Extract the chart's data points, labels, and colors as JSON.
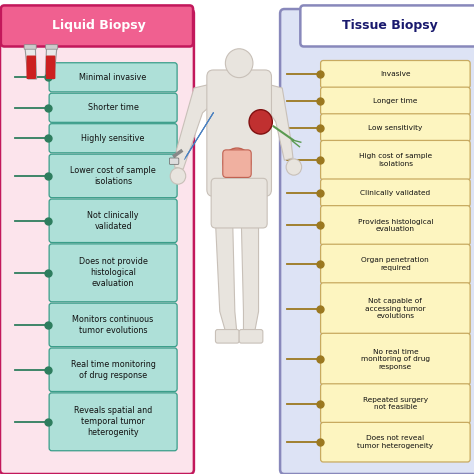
{
  "title_left": "Liquid Biopsy",
  "title_right": "Tissue Biopsy",
  "left_bg": "#fce4ec",
  "left_box_bg": "#aee0d8",
  "left_box_border": "#3a9e8a",
  "left_border": "#c2185b",
  "left_dot_color": "#2e7d5e",
  "left_line_color": "#2e7d5e",
  "right_bg": "#dde3f5",
  "right_box_bg": "#fdf5c0",
  "right_box_border": "#c8aa60",
  "right_border": "#8888bb",
  "right_dot_color": "#9b7820",
  "right_line_color": "#9b7820",
  "title_left_bg": "#f06090",
  "title_right_bg": "#ffffff",
  "left_items": [
    "Minimal invasive",
    "Shorter time",
    "Highly sensitive",
    "Lower cost of sample\nisolations",
    "Not clinically\nvalidated",
    "Does not provide\nhistological\nevaluation",
    "Monitors continuous\ntumor evolutions",
    "Real time monitoring\nof drug response",
    "Reveals spatial and\ntemporal tumor\nheterogenity"
  ],
  "right_items": [
    "Invasive",
    "Longer time",
    "Low sensitivity",
    "High cost of sample\nisolations",
    "Clinically validated",
    "Provides histological\nevaluation",
    "Organ penetration\nrequired",
    "Not capable of\naccessing tumor\nevolutions",
    "No real time\nmonitoring of drug\nresponse",
    "Repeated surgery\nnot feasible",
    "Does not reveal\ntumor heterogeneity"
  ],
  "fig_bg": "#ffffff",
  "body_color": "#e8e4de",
  "body_edge": "#c8c0b8"
}
